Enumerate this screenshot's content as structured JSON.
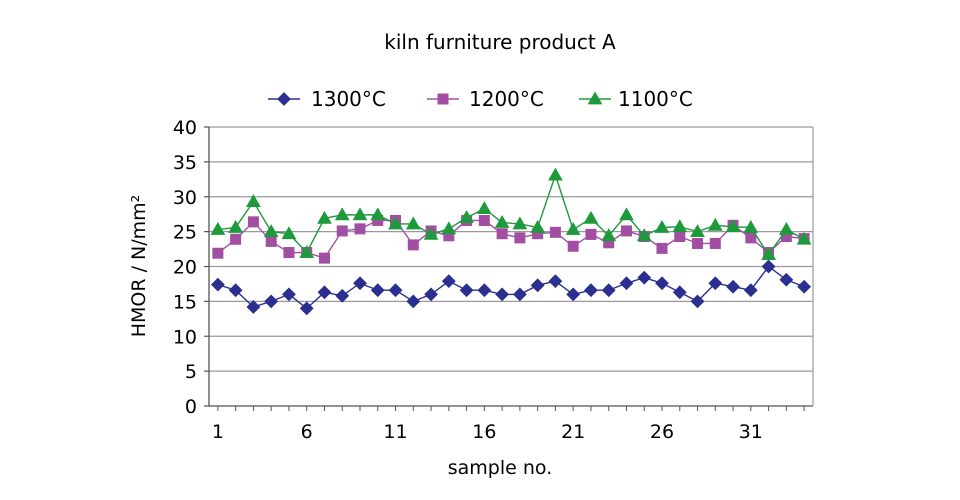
{
  "chart_data": {
    "type": "line",
    "title": "kiln furniture product A",
    "xlabel": "sample no.",
    "ylabel": "HMOR / N/mm²",
    "ylim": [
      0,
      40
    ],
    "yticks": [
      0,
      5,
      10,
      15,
      20,
      25,
      30,
      35,
      40
    ],
    "xlim": [
      0.5,
      34.5
    ],
    "xticks": [
      1,
      6,
      11,
      16,
      21,
      26,
      31
    ],
    "grid": true,
    "legend_position": "top",
    "x": [
      1,
      2,
      3,
      4,
      5,
      6,
      7,
      8,
      9,
      10,
      11,
      12,
      13,
      14,
      15,
      16,
      17,
      18,
      19,
      20,
      21,
      22,
      23,
      24,
      25,
      26,
      27,
      28,
      29,
      30,
      31,
      32,
      33,
      34
    ],
    "series": [
      {
        "name": "1300°C",
        "color": "#2b2f8f",
        "marker": "diamond",
        "values": [
          17.4,
          16.6,
          14.2,
          15.0,
          16.0,
          14.0,
          16.3,
          15.8,
          17.6,
          16.6,
          16.6,
          15.0,
          16.0,
          17.9,
          16.6,
          16.6,
          16.0,
          16.0,
          17.3,
          17.9,
          16.0,
          16.6,
          16.6,
          17.6,
          18.4,
          17.6,
          16.3,
          15.0,
          17.6,
          17.1,
          16.6,
          20.0,
          18.1,
          17.1
        ]
      },
      {
        "name": "1200°C",
        "color": "#a24fa3",
        "marker": "square",
        "values": [
          21.9,
          23.9,
          26.4,
          23.6,
          22.0,
          22.0,
          21.2,
          25.1,
          25.4,
          26.6,
          26.6,
          23.1,
          25.1,
          24.4,
          26.6,
          26.6,
          24.7,
          24.1,
          24.7,
          24.9,
          22.9,
          24.6,
          23.4,
          25.1,
          24.3,
          22.6,
          24.3,
          23.3,
          23.3,
          25.9,
          24.1,
          22.0,
          24.3,
          24.0
        ]
      },
      {
        "name": "1100°C",
        "color": "#1e9a3d",
        "marker": "triangle",
        "values": [
          25.3,
          25.6,
          29.3,
          25.0,
          24.7,
          22.0,
          26.9,
          27.4,
          27.4,
          27.4,
          26.1,
          26.1,
          24.6,
          25.4,
          27.0,
          28.3,
          26.3,
          26.1,
          25.6,
          33.1,
          25.3,
          26.9,
          24.4,
          27.4,
          24.4,
          25.6,
          25.7,
          25.0,
          25.9,
          25.7,
          25.6,
          21.7,
          25.3,
          23.9
        ]
      }
    ]
  }
}
